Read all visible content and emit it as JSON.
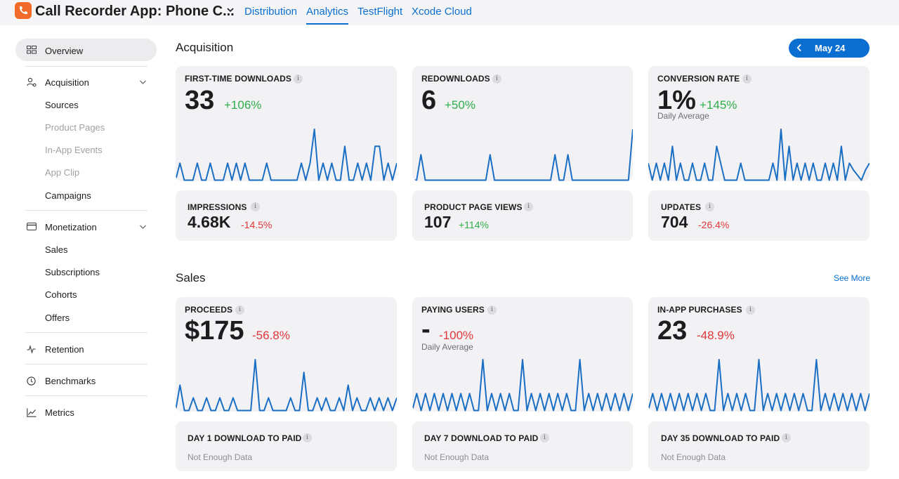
{
  "app": {
    "title": "Call Recorder App: Phone C..."
  },
  "nav": {
    "tabs": [
      {
        "label": "Distribution"
      },
      {
        "label": "Analytics",
        "active": true
      },
      {
        "label": "TestFlight"
      },
      {
        "label": "Xcode Cloud"
      }
    ]
  },
  "sidebar": {
    "overview": "Overview",
    "acquisition": {
      "label": "Acquisition",
      "items": [
        {
          "label": "Sources",
          "disabled": false
        },
        {
          "label": "Product Pages",
          "disabled": true
        },
        {
          "label": "In-App Events",
          "disabled": true
        },
        {
          "label": "App Clip",
          "disabled": true
        },
        {
          "label": "Campaigns",
          "disabled": false
        }
      ]
    },
    "monetization": {
      "label": "Monetization",
      "items": [
        {
          "label": "Sales"
        },
        {
          "label": "Subscriptions"
        },
        {
          "label": "Cohorts"
        },
        {
          "label": "Offers"
        }
      ]
    },
    "retention": "Retention",
    "benchmarks": "Benchmarks",
    "metrics": "Metrics"
  },
  "acquisition": {
    "title": "Acquisition",
    "date_label": "May 24",
    "cards": {
      "first_time_downloads": {
        "label": "FIRST-TIME DOWNLOADS",
        "value": "33",
        "change": "+106%"
      },
      "redownloads": {
        "label": "REDOWNLOADS",
        "value": "6",
        "change": "+50%"
      },
      "conversion_rate": {
        "label": "CONVERSION RATE",
        "value": "1%",
        "change": "+145%",
        "note": "Daily Average"
      },
      "impressions": {
        "label": "IMPRESSIONS",
        "value": "4.68K",
        "change": "-14.5%"
      },
      "product_page_views": {
        "label": "PRODUCT PAGE VIEWS",
        "value": "107",
        "change": "+114%"
      },
      "updates": {
        "label": "UPDATES",
        "value": "704",
        "change": "-26.4%"
      }
    }
  },
  "sales": {
    "title": "Sales",
    "see_more": "See More",
    "cards": {
      "proceeds": {
        "label": "PROCEEDS",
        "value": "$175",
        "change": "-56.8%"
      },
      "paying_users": {
        "label": "PAYING USERS",
        "value": "-",
        "change": "-100%",
        "note": "Daily Average"
      },
      "in_app_purchases": {
        "label": "IN-APP PURCHASES",
        "value": "23",
        "change": "-48.9%"
      },
      "day1": {
        "label": "DAY 1 DOWNLOAD TO PAID",
        "note": "Not Enough Data"
      },
      "day7": {
        "label": "DAY 7 DOWNLOAD TO PAID",
        "note": "Not Enough Data"
      },
      "day35": {
        "label": "DAY 35 DOWNLOAD TO PAID",
        "note": "Not Enough Data"
      }
    }
  },
  "sparklines": {
    "first_time_downloads": [
      0,
      1,
      0,
      0,
      0,
      1,
      0,
      0,
      1,
      0,
      0,
      0,
      1,
      0,
      1,
      0,
      1,
      0,
      0,
      0,
      0,
      1,
      0,
      0,
      0,
      0,
      0,
      0,
      0,
      1,
      0,
      1,
      3,
      0,
      1,
      0,
      1,
      0,
      0,
      2,
      0,
      0,
      1,
      0,
      1,
      0,
      2,
      2,
      0,
      1,
      0,
      1
    ],
    "redownloads": [
      0,
      0,
      2,
      0,
      0,
      0,
      0,
      0,
      0,
      0,
      0,
      0,
      0,
      0,
      0,
      0,
      0,
      0,
      2,
      0,
      0,
      0,
      0,
      0,
      0,
      0,
      0,
      0,
      0,
      0,
      0,
      0,
      0,
      2,
      0,
      0,
      2,
      0,
      0,
      0,
      0,
      0,
      0,
      0,
      0,
      0,
      0,
      0,
      0,
      0,
      0,
      4
    ],
    "conversion_rate": [
      1,
      0,
      1,
      0,
      1,
      0,
      2,
      0,
      1,
      0,
      0,
      1,
      0,
      0,
      1,
      0,
      0,
      2,
      1,
      0,
      0,
      0,
      0,
      1,
      0,
      0,
      0,
      0,
      0,
      0,
      0,
      1,
      0,
      3,
      0,
      2,
      0,
      1,
      0,
      1,
      0,
      1,
      0,
      0,
      1,
      0,
      1,
      0,
      2,
      0,
      1,
      0.6,
      0.3,
      0,
      0.6,
      1
    ],
    "proceeds": [
      0,
      2,
      0,
      0,
      1,
      0,
      0,
      1,
      0,
      0,
      1,
      0,
      0,
      1,
      0,
      0,
      0,
      0,
      4,
      0,
      0,
      1,
      0,
      0,
      0,
      0,
      1,
      0,
      0,
      3,
      0,
      0,
      1,
      0,
      1,
      0,
      0,
      1,
      0,
      2,
      0,
      1,
      0,
      0,
      1,
      0,
      1,
      0,
      1,
      0,
      1
    ],
    "paying_users": [
      0,
      1,
      0,
      1,
      0,
      1,
      0,
      1,
      0,
      1,
      0,
      1,
      0,
      1,
      0,
      0,
      3,
      0,
      1,
      0,
      1,
      0,
      1,
      0,
      0,
      3,
      0,
      1,
      0,
      1,
      0,
      1,
      0,
      1,
      0,
      1,
      0,
      0,
      3,
      0,
      1,
      0,
      1,
      0,
      1,
      0,
      1,
      0,
      1,
      0,
      1
    ],
    "in_app_purchases": [
      0,
      1,
      0,
      1,
      0,
      1,
      0,
      1,
      0,
      1,
      0,
      1,
      0,
      1,
      0,
      0,
      3,
      0,
      1,
      0,
      1,
      0,
      1,
      0,
      0,
      3,
      0,
      1,
      0,
      1,
      0,
      1,
      0,
      1,
      0,
      1,
      0,
      0,
      3,
      0,
      1,
      0,
      1,
      0,
      1,
      0,
      1,
      0,
      1,
      0,
      1
    ]
  },
  "colors": {
    "accent": "#0a6fd1",
    "positive": "#2fae4b",
    "negative": "#e0373a",
    "sparkline": "#1a6fc4"
  }
}
